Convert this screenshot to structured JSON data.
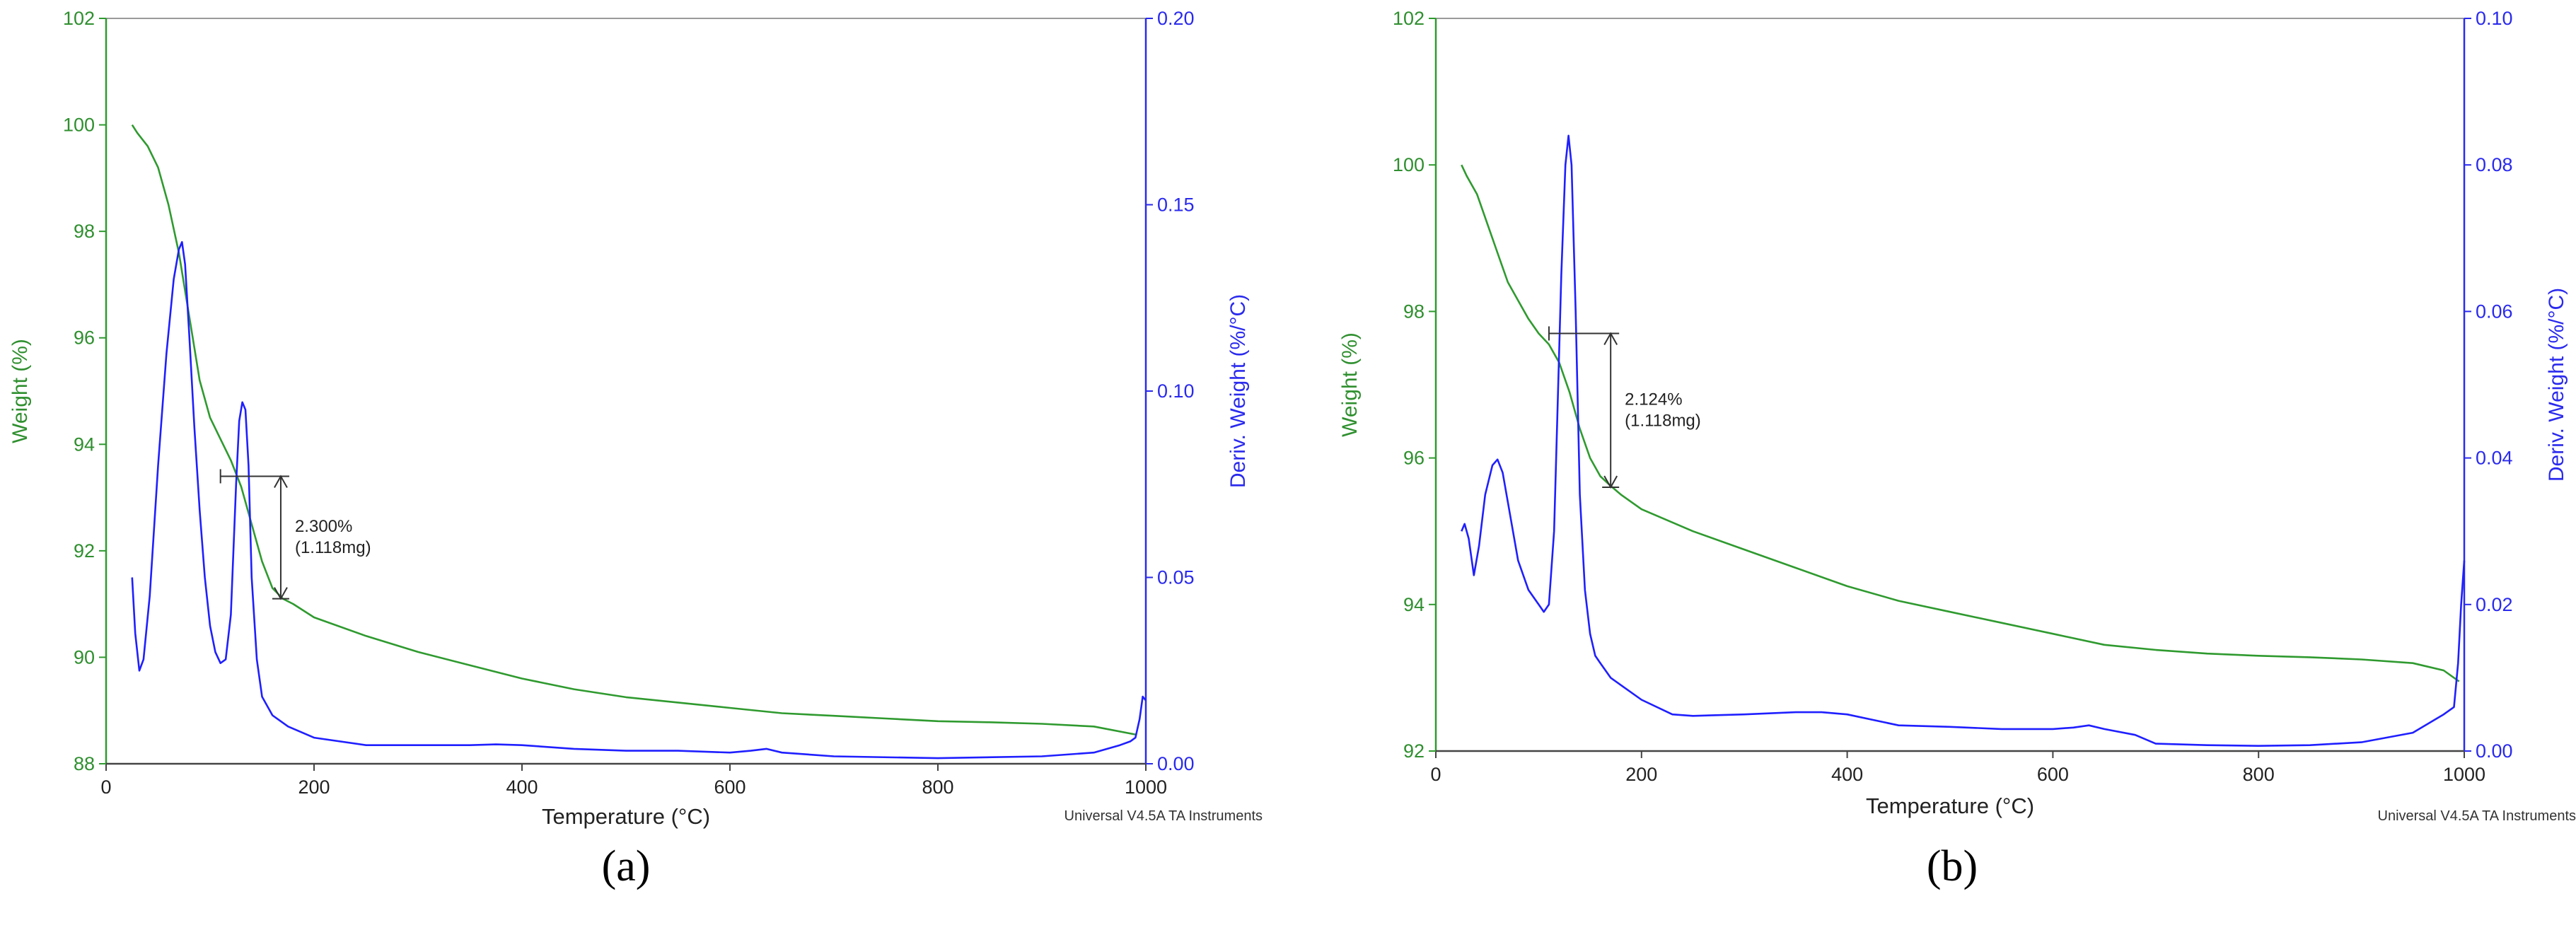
{
  "chart_data": [
    {
      "type": "line",
      "panel_label": "(a)",
      "xlabel": "Temperature (°C)",
      "ylabel": "Weight (%)",
      "y2label": "Deriv. Weight (%/°C)",
      "xlim": [
        0,
        1000
      ],
      "ylim": [
        88,
        102
      ],
      "y2lim": [
        0,
        0.2
      ],
      "x_ticks": [
        "0",
        "200",
        "400",
        "600",
        "800",
        "1000"
      ],
      "y_ticks": [
        "88",
        "90",
        "92",
        "94",
        "96",
        "98",
        "100",
        "102"
      ],
      "y2_ticks": [
        "0.00",
        "0.05",
        "0.10",
        "0.15",
        "0.20"
      ],
      "colors": {
        "weight": "#2f9a2f",
        "deriv": "#1f1fff"
      },
      "watermark": "Universal V4.5A TA Instruments",
      "annotation": {
        "text1": "2.300%",
        "text2": "(1.118mg)",
        "x": 168,
        "y_top": 93.4,
        "y_bottom": 91.1,
        "x_left": 110
      },
      "series": [
        {
          "axis": "left",
          "x": [
            25,
            30,
            40,
            50,
            60,
            70,
            80,
            90,
            100,
            110,
            120,
            130,
            140,
            150,
            160,
            170,
            180,
            200,
            250,
            300,
            350,
            400,
            450,
            500,
            550,
            600,
            650,
            700,
            750,
            800,
            850,
            900,
            950,
            990
          ],
          "y": [
            100.0,
            99.85,
            99.6,
            99.2,
            98.5,
            97.6,
            96.4,
            95.2,
            94.5,
            94.1,
            93.7,
            93.2,
            92.5,
            91.8,
            91.3,
            91.1,
            91.0,
            90.75,
            90.4,
            90.1,
            89.85,
            89.6,
            89.4,
            89.25,
            89.15,
            89.05,
            88.95,
            88.9,
            88.85,
            88.8,
            88.78,
            88.75,
            88.7,
            88.55
          ]
        },
        {
          "axis": "right",
          "x": [
            25,
            28,
            32,
            36,
            42,
            50,
            58,
            65,
            70,
            73,
            76,
            80,
            85,
            90,
            95,
            100,
            105,
            110,
            115,
            120,
            125,
            128,
            131,
            134,
            137,
            140,
            145,
            150,
            160,
            175,
            200,
            250,
            300,
            350,
            375,
            400,
            450,
            500,
            550,
            600,
            620,
            635,
            650,
            700,
            800,
            900,
            950,
            975,
            985,
            990,
            994,
            997,
            1000
          ],
          "y": [
            0.05,
            0.035,
            0.025,
            0.028,
            0.045,
            0.08,
            0.11,
            0.13,
            0.138,
            0.14,
            0.134,
            0.115,
            0.09,
            0.068,
            0.05,
            0.037,
            0.03,
            0.027,
            0.028,
            0.04,
            0.075,
            0.092,
            0.097,
            0.095,
            0.08,
            0.05,
            0.028,
            0.018,
            0.013,
            0.01,
            0.007,
            0.005,
            0.005,
            0.005,
            0.0052,
            0.005,
            0.004,
            0.0035,
            0.0035,
            0.003,
            0.0035,
            0.004,
            0.003,
            0.002,
            0.0015,
            0.002,
            0.003,
            0.005,
            0.006,
            0.007,
            0.012,
            0.018,
            0.017
          ]
        }
      ]
    },
    {
      "type": "line",
      "panel_label": "(b)",
      "xlabel": "Temperature (°C)",
      "ylabel": "Weight (%)",
      "y2label": "Deriv. Weight (%/°C)",
      "xlim": [
        0,
        1000
      ],
      "ylim": [
        92,
        102
      ],
      "y2lim": [
        0,
        0.1
      ],
      "x_ticks": [
        "0",
        "200",
        "400",
        "600",
        "800",
        "1000"
      ],
      "y_ticks": [
        "92",
        "94",
        "96",
        "98",
        "100",
        "102"
      ],
      "y2_ticks": [
        "0.00",
        "0.02",
        "0.04",
        "0.06",
        "0.08",
        "0.10"
      ],
      "colors": {
        "weight": "#2f9a2f",
        "deriv": "#1f1fff"
      },
      "watermark": "Universal V4.5A TA Instruments",
      "annotation": {
        "text1": "2.124%",
        "text2": "(1.118mg)",
        "x": 170,
        "y_top": 97.7,
        "y_bottom": 95.6,
        "x_left": 110
      },
      "series": [
        {
          "axis": "left",
          "x": [
            25,
            30,
            40,
            50,
            60,
            70,
            80,
            90,
            100,
            110,
            120,
            130,
            140,
            150,
            160,
            170,
            180,
            200,
            250,
            300,
            350,
            400,
            450,
            500,
            550,
            600,
            650,
            700,
            750,
            800,
            850,
            900,
            950,
            980,
            995
          ],
          "y": [
            100.0,
            99.85,
            99.6,
            99.2,
            98.8,
            98.4,
            98.15,
            97.9,
            97.7,
            97.55,
            97.3,
            96.9,
            96.4,
            96.0,
            95.75,
            95.62,
            95.5,
            95.3,
            95.0,
            94.75,
            94.5,
            94.25,
            94.05,
            93.9,
            93.75,
            93.6,
            93.45,
            93.38,
            93.33,
            93.3,
            93.28,
            93.25,
            93.2,
            93.1,
            92.95
          ]
        },
        {
          "axis": "right",
          "x": [
            25,
            28,
            32,
            37,
            42,
            48,
            55,
            60,
            65,
            70,
            80,
            90,
            100,
            105,
            110,
            115,
            118,
            122,
            126,
            129,
            132,
            136,
            140,
            145,
            150,
            155,
            160,
            170,
            180,
            200,
            230,
            250,
            300,
            350,
            375,
            400,
            450,
            500,
            550,
            600,
            620,
            635,
            650,
            680,
            700,
            750,
            800,
            850,
            900,
            950,
            980,
            990,
            994,
            997,
            1000
          ],
          "y": [
            0.03,
            0.031,
            0.029,
            0.024,
            0.028,
            0.035,
            0.039,
            0.0398,
            0.038,
            0.034,
            0.026,
            0.022,
            0.02,
            0.019,
            0.02,
            0.03,
            0.045,
            0.065,
            0.08,
            0.084,
            0.08,
            0.06,
            0.035,
            0.022,
            0.016,
            0.013,
            0.012,
            0.01,
            0.009,
            0.007,
            0.005,
            0.0048,
            0.005,
            0.0053,
            0.0053,
            0.005,
            0.0035,
            0.0033,
            0.003,
            0.003,
            0.0032,
            0.0035,
            0.003,
            0.0022,
            0.001,
            0.0008,
            0.0007,
            0.0008,
            0.0012,
            0.0025,
            0.005,
            0.006,
            0.012,
            0.02,
            0.026
          ]
        }
      ]
    }
  ]
}
